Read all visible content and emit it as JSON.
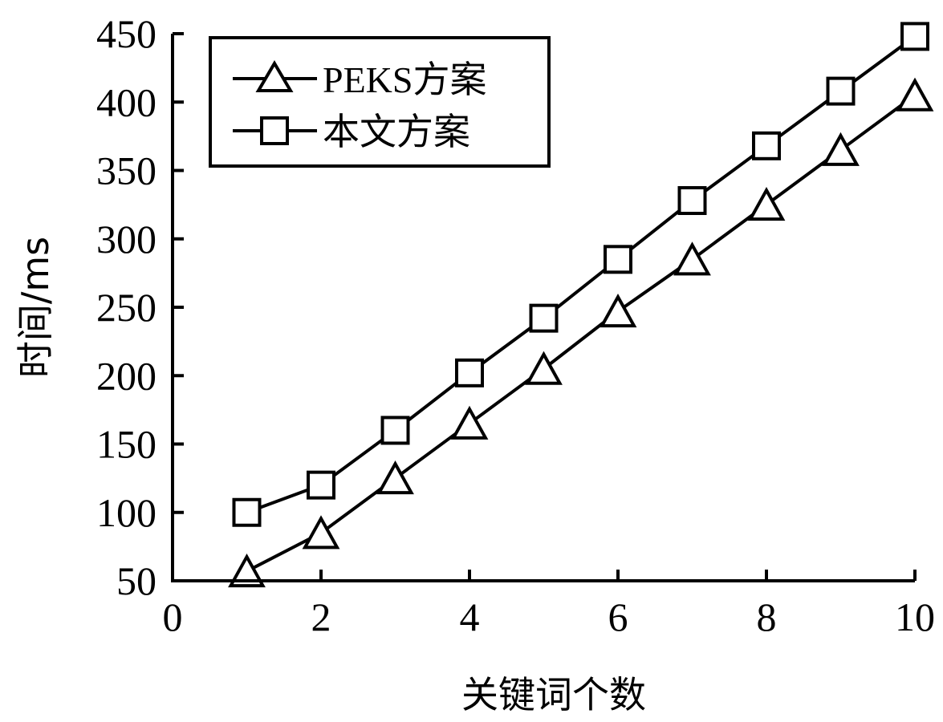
{
  "chart_data": {
    "type": "line",
    "xlabel": "关键词个数",
    "ylabel": "时间/ms",
    "xlim": [
      0,
      10
    ],
    "ylim": [
      50,
      450
    ],
    "x_ticks": [
      "0",
      "2",
      "4",
      "6",
      "8",
      "10"
    ],
    "y_ticks": [
      "50",
      "100",
      "150",
      "200",
      "250",
      "300",
      "350",
      "400",
      "450"
    ],
    "grid": false,
    "legend_position": "top-left",
    "x": [
      1,
      2,
      3,
      4,
      5,
      6,
      7,
      8,
      9,
      10
    ],
    "series": [
      {
        "name": "PEKS方案",
        "marker": "triangle",
        "color": "#000000",
        "values": [
          57,
          85,
          125,
          165,
          205,
          247,
          285,
          325,
          365,
          405
        ]
      },
      {
        "name": "本文方案",
        "marker": "square",
        "color": "#000000",
        "values": [
          100,
          120,
          160,
          202,
          242,
          285,
          328,
          368,
          408,
          448
        ]
      }
    ]
  }
}
